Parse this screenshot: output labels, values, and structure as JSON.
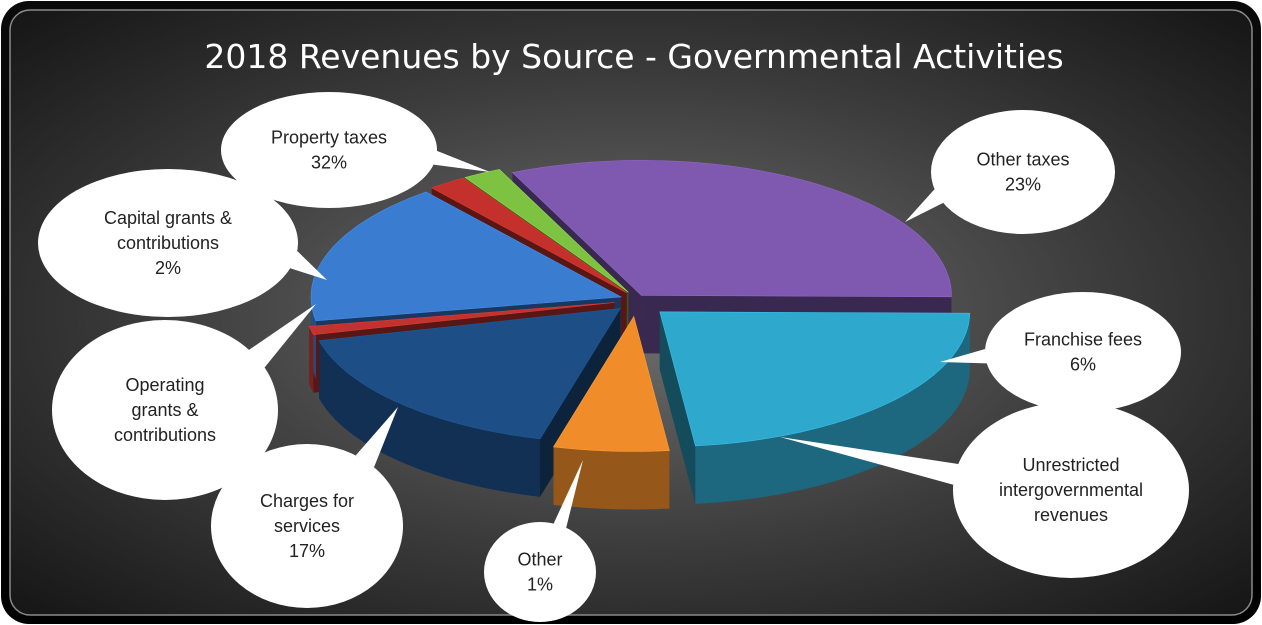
{
  "chart_data": {
    "type": "pie",
    "title": "2018 Revenues by Source - Governmental Activities",
    "slices": [
      {
        "label": "Property taxes",
        "value": 32,
        "value_text": "32%",
        "color": "#7E59AF"
      },
      {
        "label": "Other taxes",
        "value": 23,
        "value_text": "23%",
        "color": "#2FA8CD"
      },
      {
        "label": "Franchise fees",
        "value": 6,
        "value_text": "6%",
        "color": "#F08C2A"
      },
      {
        "label": "Unrestricted intergovernmental revenues",
        "value": 17,
        "value_text": "",
        "color": "#1D4E86"
      },
      {
        "label": "Other",
        "value": 1,
        "value_text": "1%",
        "color": "#C0332F"
      },
      {
        "label": "Charges for services",
        "value": 17,
        "value_text": "17%",
        "color": "#3A7DD0"
      },
      {
        "label": "Operating grants & contributions",
        "value": 2,
        "value_text": "",
        "color": "#C4302C"
      },
      {
        "label": "Capital grants & contributions",
        "value": 2,
        "value_text": "2%",
        "color": "#7EC242"
      }
    ],
    "callouts": [
      {
        "lines": [
          "Property taxes",
          "32%"
        ]
      },
      {
        "lines": [
          "Other taxes",
          "23%"
        ]
      },
      {
        "lines": [
          "Franchise fees",
          "6%"
        ]
      },
      {
        "lines": [
          "Unrestricted",
          "intergovernmental",
          "revenues"
        ]
      },
      {
        "lines": [
          "Other",
          "1%"
        ]
      },
      {
        "lines": [
          "Charges for",
          "services",
          "17%"
        ]
      },
      {
        "lines": [
          "Operating",
          "grants &",
          "contributions"
        ]
      },
      {
        "lines": [
          "Capital grants &",
          "contributions",
          "2%"
        ]
      }
    ]
  }
}
